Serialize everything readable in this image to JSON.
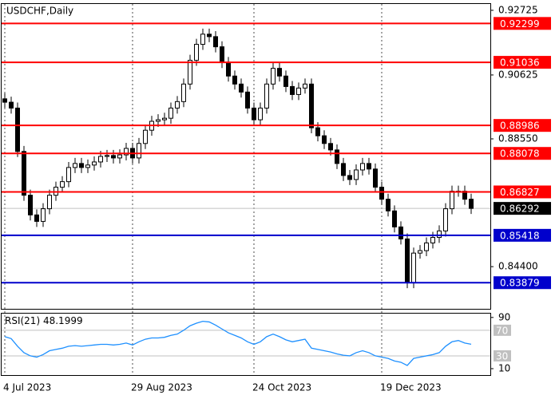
{
  "chart_data": {
    "type": "candlestick",
    "title": "USDCHF,Daily",
    "candles": [
      [
        0.8985,
        0.9003,
        0.8956,
        0.8974
      ],
      [
        0.8974,
        0.8992,
        0.8937,
        0.8955
      ],
      [
        0.8955,
        0.8973,
        0.8796,
        0.8814
      ],
      [
        0.8814,
        0.8832,
        0.8654,
        0.8672
      ],
      [
        0.8672,
        0.869,
        0.859,
        0.8608
      ],
      [
        0.8608,
        0.8626,
        0.8569,
        0.8587
      ],
      [
        0.8587,
        0.8646,
        0.8569,
        0.8628
      ],
      [
        0.8628,
        0.869,
        0.861,
        0.8672
      ],
      [
        0.8672,
        0.8716,
        0.8654,
        0.8698
      ],
      [
        0.8698,
        0.8734,
        0.868,
        0.8716
      ],
      [
        0.8716,
        0.878,
        0.8698,
        0.8762
      ],
      [
        0.8762,
        0.8793,
        0.8744,
        0.8775
      ],
      [
        0.8775,
        0.8793,
        0.8744,
        0.8762
      ],
      [
        0.8762,
        0.8788,
        0.8744,
        0.877
      ],
      [
        0.877,
        0.8798,
        0.8752,
        0.878
      ],
      [
        0.878,
        0.8816,
        0.8762,
        0.8798
      ],
      [
        0.8798,
        0.8819,
        0.878,
        0.8801
      ],
      [
        0.8801,
        0.8819,
        0.8775,
        0.8793
      ],
      [
        0.8793,
        0.8821,
        0.8775,
        0.8803
      ],
      [
        0.8803,
        0.8842,
        0.8785,
        0.8824
      ],
      [
        0.8824,
        0.8842,
        0.8775,
        0.8793
      ],
      [
        0.8793,
        0.8858,
        0.8775,
        0.884
      ],
      [
        0.884,
        0.8901,
        0.8822,
        0.8883
      ],
      [
        0.8883,
        0.893,
        0.8865,
        0.8912
      ],
      [
        0.8912,
        0.8935,
        0.8894,
        0.8917
      ],
      [
        0.8917,
        0.894,
        0.8899,
        0.8922
      ],
      [
        0.8922,
        0.8973,
        0.8904,
        0.8955
      ],
      [
        0.8955,
        0.8994,
        0.8937,
        0.8976
      ],
      [
        0.8976,
        0.9051,
        0.8958,
        0.9033
      ],
      [
        0.9033,
        0.9128,
        0.9015,
        0.911
      ],
      [
        0.911,
        0.918,
        0.9092,
        0.9162
      ],
      [
        0.9162,
        0.9213,
        0.9144,
        0.9195
      ],
      [
        0.9195,
        0.9213,
        0.9169,
        0.9187
      ],
      [
        0.9187,
        0.9205,
        0.9136,
        0.9154
      ],
      [
        0.9154,
        0.9172,
        0.9085,
        0.9103
      ],
      [
        0.9103,
        0.9121,
        0.9041,
        0.9059
      ],
      [
        0.9059,
        0.9077,
        0.9015,
        0.9033
      ],
      [
        0.9033,
        0.9051,
        0.8989,
        0.9007
      ],
      [
        0.9007,
        0.9025,
        0.8937,
        0.8955
      ],
      [
        0.8955,
        0.8973,
        0.8899,
        0.8917
      ],
      [
        0.8917,
        0.8973,
        0.8899,
        0.8955
      ],
      [
        0.8955,
        0.9051,
        0.8937,
        0.9033
      ],
      [
        0.9033,
        0.9102,
        0.9015,
        0.9084
      ],
      [
        0.9084,
        0.9102,
        0.9041,
        0.9059
      ],
      [
        0.9059,
        0.9077,
        0.9007,
        0.9025
      ],
      [
        0.9025,
        0.9043,
        0.8981,
        0.8999
      ],
      [
        0.8999,
        0.9038,
        0.8981,
        0.902
      ],
      [
        0.902,
        0.9051,
        0.9002,
        0.9033
      ],
      [
        0.9033,
        0.9051,
        0.8873,
        0.8891
      ],
      [
        0.8891,
        0.8909,
        0.8847,
        0.8865
      ],
      [
        0.8865,
        0.8883,
        0.8822,
        0.884
      ],
      [
        0.884,
        0.8858,
        0.8801,
        0.8819
      ],
      [
        0.8819,
        0.8837,
        0.8757,
        0.8775
      ],
      [
        0.8775,
        0.8793,
        0.8718,
        0.8736
      ],
      [
        0.8736,
        0.8754,
        0.8705,
        0.8723
      ],
      [
        0.8723,
        0.8772,
        0.8705,
        0.8754
      ],
      [
        0.8754,
        0.8793,
        0.8736,
        0.8775
      ],
      [
        0.8775,
        0.8793,
        0.8739,
        0.8757
      ],
      [
        0.8757,
        0.8775,
        0.868,
        0.8698
      ],
      [
        0.8698,
        0.8716,
        0.8641,
        0.8659
      ],
      [
        0.8659,
        0.8677,
        0.8603,
        0.8621
      ],
      [
        0.8621,
        0.8639,
        0.8551,
        0.8569
      ],
      [
        0.8569,
        0.8587,
        0.8512,
        0.853
      ],
      [
        0.853,
        0.8548,
        0.837,
        0.8388
      ],
      [
        0.8388,
        0.8502,
        0.837,
        0.8484
      ],
      [
        0.8484,
        0.851,
        0.8466,
        0.8492
      ],
      [
        0.8492,
        0.8535,
        0.8474,
        0.8517
      ],
      [
        0.8517,
        0.8553,
        0.8499,
        0.8535
      ],
      [
        0.8535,
        0.8574,
        0.8517,
        0.8556
      ],
      [
        0.8556,
        0.8646,
        0.8538,
        0.8628
      ],
      [
        0.8628,
        0.8703,
        0.861,
        0.8685
      ],
      [
        0.8685,
        0.8703,
        0.8667,
        0.8685
      ],
      [
        0.8685,
        0.8703,
        0.8641,
        0.8659
      ],
      [
        0.8659,
        0.8677,
        0.8611,
        0.86292
      ]
    ],
    "ylim": [
      0.8303,
      0.9293
    ],
    "yticks": [
      0.92725,
      0.90625,
      {
        "value": 0.8855,
        "label": "0.88550"
      },
      {
        "value": 0.844,
        "label": "0.84400"
      }
    ],
    "xticks": [
      {
        "value": 0,
        "label": "4 Jul 2023"
      },
      {
        "value": 20,
        "label": "29 Aug 2023"
      },
      {
        "value": 39,
        "label": "24 Oct 2023"
      },
      {
        "value": 59,
        "label": "19 Dec 2023"
      }
    ],
    "levels": [
      {
        "value": 0.92299,
        "color": "#ff0000"
      },
      {
        "value": 0.91036,
        "color": "#ff0000"
      },
      {
        "value": 0.88986,
        "color": "#ff0000"
      },
      {
        "value": 0.88078,
        "color": "#ff0000"
      },
      {
        "value": 0.86827,
        "color": "#ff0000"
      },
      {
        "value": 0.85418,
        "color": "#0000cc"
      },
      {
        "value": 0.83879,
        "color": "#0000cc"
      }
    ],
    "last_price": 0.86292,
    "rsi": {
      "title": "RSI(21)",
      "color": "#1e90ff",
      "values": [
        60,
        57,
        45,
        35,
        30,
        28,
        32,
        38,
        40,
        42,
        45,
        46,
        45,
        46,
        47,
        48,
        48,
        47,
        48,
        50,
        47,
        52,
        56,
        58,
        58,
        59,
        62,
        64,
        70,
        77,
        81,
        84,
        83,
        78,
        72,
        66,
        62,
        58,
        52,
        48,
        52,
        60,
        64,
        60,
        55,
        52,
        54,
        56,
        42,
        40,
        38,
        36,
        33,
        31,
        30,
        35,
        38,
        35,
        30,
        28,
        26,
        22,
        20,
        15,
        26,
        28,
        30,
        32,
        35,
        45,
        52,
        54,
        50,
        48.1999
      ],
      "ylim": [
        0,
        96
      ],
      "yticks": [
        10,
        90
      ],
      "levels": [
        30,
        70
      ]
    }
  }
}
